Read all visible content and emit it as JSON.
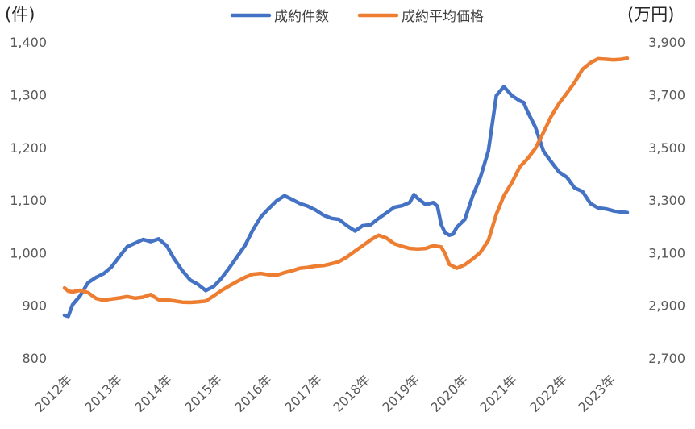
{
  "chart_data": {
    "type": "line",
    "left_unit": "(件)",
    "right_unit": "(万円)",
    "left_axis": {
      "ylim": [
        800,
        1400
      ],
      "ticks": [
        "1,400",
        "1,300",
        "1,200",
        "1,100",
        "1,000",
        "900",
        "800"
      ]
    },
    "right_axis": {
      "ylim": [
        2700,
        3900
      ],
      "ticks": [
        "3,900",
        "3,700",
        "3,500",
        "3,300",
        "3,100",
        "2,900",
        "2,700"
      ]
    },
    "x_labels": [
      "2012年",
      "2013年",
      "2014年",
      "2015年",
      "2016年",
      "2017年",
      "2018年",
      "2019年",
      "2020年",
      "2021年",
      "2022年",
      "2023年"
    ],
    "x_range": [
      2012.0,
      2023.95
    ],
    "grid": false,
    "legend_position": "top-center",
    "series": [
      {
        "name": "成約件数",
        "axis": "left",
        "color": "#4472C4",
        "points": [
          [
            2012.0,
            878
          ],
          [
            2012.08,
            876
          ],
          [
            2012.17,
            898
          ],
          [
            2012.33,
            915
          ],
          [
            2012.5,
            940
          ],
          [
            2012.67,
            950
          ],
          [
            2012.83,
            957
          ],
          [
            2013.0,
            970
          ],
          [
            2013.17,
            990
          ],
          [
            2013.33,
            1008
          ],
          [
            2013.5,
            1015
          ],
          [
            2013.67,
            1022
          ],
          [
            2013.83,
            1018
          ],
          [
            2014.0,
            1023
          ],
          [
            2014.17,
            1010
          ],
          [
            2014.33,
            985
          ],
          [
            2014.5,
            963
          ],
          [
            2014.67,
            945
          ],
          [
            2014.83,
            937
          ],
          [
            2015.0,
            925
          ],
          [
            2015.17,
            933
          ],
          [
            2015.33,
            948
          ],
          [
            2015.5,
            968
          ],
          [
            2015.67,
            990
          ],
          [
            2015.83,
            1010
          ],
          [
            2016.0,
            1040
          ],
          [
            2016.17,
            1065
          ],
          [
            2016.33,
            1080
          ],
          [
            2016.5,
            1095
          ],
          [
            2016.67,
            1105
          ],
          [
            2016.83,
            1098
          ],
          [
            2017.0,
            1090
          ],
          [
            2017.17,
            1085
          ],
          [
            2017.33,
            1078
          ],
          [
            2017.5,
            1068
          ],
          [
            2017.67,
            1062
          ],
          [
            2017.83,
            1060
          ],
          [
            2018.0,
            1048
          ],
          [
            2018.17,
            1038
          ],
          [
            2018.33,
            1048
          ],
          [
            2018.5,
            1050
          ],
          [
            2018.67,
            1062
          ],
          [
            2018.83,
            1072
          ],
          [
            2019.0,
            1083
          ],
          [
            2019.17,
            1086
          ],
          [
            2019.33,
            1092
          ],
          [
            2019.42,
            1107
          ],
          [
            2019.5,
            1100
          ],
          [
            2019.67,
            1088
          ],
          [
            2019.83,
            1092
          ],
          [
            2019.92,
            1085
          ],
          [
            2020.0,
            1050
          ],
          [
            2020.08,
            1035
          ],
          [
            2020.17,
            1030
          ],
          [
            2020.25,
            1032
          ],
          [
            2020.33,
            1045
          ],
          [
            2020.5,
            1060
          ],
          [
            2020.67,
            1105
          ],
          [
            2020.83,
            1140
          ],
          [
            2021.0,
            1190
          ],
          [
            2021.17,
            1295
          ],
          [
            2021.33,
            1312
          ],
          [
            2021.5,
            1295
          ],
          [
            2021.67,
            1285
          ],
          [
            2021.75,
            1282
          ],
          [
            2021.83,
            1265
          ],
          [
            2022.0,
            1235
          ],
          [
            2022.17,
            1190
          ],
          [
            2022.33,
            1170
          ],
          [
            2022.5,
            1150
          ],
          [
            2022.67,
            1140
          ],
          [
            2022.83,
            1120
          ],
          [
            2023.0,
            1113
          ],
          [
            2023.17,
            1090
          ],
          [
            2023.33,
            1082
          ],
          [
            2023.5,
            1080
          ],
          [
            2023.67,
            1076
          ],
          [
            2023.83,
            1074
          ],
          [
            2023.95,
            1073
          ]
        ]
      },
      {
        "name": "成約平均価格",
        "axis": "right",
        "color": "#ED7D31",
        "points": [
          [
            2012.0,
            2960
          ],
          [
            2012.08,
            2948
          ],
          [
            2012.17,
            2945
          ],
          [
            2012.33,
            2951
          ],
          [
            2012.5,
            2942
          ],
          [
            2012.67,
            2920
          ],
          [
            2012.83,
            2913
          ],
          [
            2013.0,
            2918
          ],
          [
            2013.17,
            2922
          ],
          [
            2013.33,
            2927
          ],
          [
            2013.5,
            2921
          ],
          [
            2013.67,
            2925
          ],
          [
            2013.83,
            2935
          ],
          [
            2014.0,
            2915
          ],
          [
            2014.17,
            2915
          ],
          [
            2014.33,
            2911
          ],
          [
            2014.5,
            2906
          ],
          [
            2014.67,
            2905
          ],
          [
            2014.83,
            2907
          ],
          [
            2015.0,
            2910
          ],
          [
            2015.17,
            2930
          ],
          [
            2015.33,
            2950
          ],
          [
            2015.5,
            2968
          ],
          [
            2015.67,
            2985
          ],
          [
            2015.83,
            3000
          ],
          [
            2016.0,
            3012
          ],
          [
            2016.17,
            3015
          ],
          [
            2016.33,
            3010
          ],
          [
            2016.5,
            3008
          ],
          [
            2016.67,
            3018
          ],
          [
            2016.83,
            3025
          ],
          [
            2017.0,
            3035
          ],
          [
            2017.17,
            3038
          ],
          [
            2017.33,
            3043
          ],
          [
            2017.5,
            3045
          ],
          [
            2017.67,
            3052
          ],
          [
            2017.83,
            3060
          ],
          [
            2018.0,
            3078
          ],
          [
            2018.17,
            3100
          ],
          [
            2018.33,
            3120
          ],
          [
            2018.5,
            3142
          ],
          [
            2018.67,
            3160
          ],
          [
            2018.83,
            3150
          ],
          [
            2019.0,
            3128
          ],
          [
            2019.17,
            3118
          ],
          [
            2019.33,
            3110
          ],
          [
            2019.5,
            3108
          ],
          [
            2019.67,
            3110
          ],
          [
            2019.83,
            3120
          ],
          [
            2020.0,
            3115
          ],
          [
            2020.08,
            3090
          ],
          [
            2020.17,
            3050
          ],
          [
            2020.33,
            3035
          ],
          [
            2020.5,
            3048
          ],
          [
            2020.67,
            3070
          ],
          [
            2020.83,
            3095
          ],
          [
            2021.0,
            3140
          ],
          [
            2021.17,
            3240
          ],
          [
            2021.33,
            3310
          ],
          [
            2021.5,
            3360
          ],
          [
            2021.67,
            3420
          ],
          [
            2021.83,
            3450
          ],
          [
            2022.0,
            3490
          ],
          [
            2022.17,
            3550
          ],
          [
            2022.33,
            3610
          ],
          [
            2022.5,
            3660
          ],
          [
            2022.67,
            3700
          ],
          [
            2022.83,
            3740
          ],
          [
            2023.0,
            3790
          ],
          [
            2023.17,
            3815
          ],
          [
            2023.33,
            3830
          ],
          [
            2023.5,
            3828
          ],
          [
            2023.67,
            3826
          ],
          [
            2023.83,
            3828
          ],
          [
            2023.95,
            3832
          ]
        ]
      }
    ]
  }
}
